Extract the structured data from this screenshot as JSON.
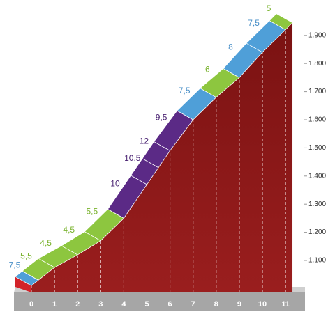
{
  "chart_data": {
    "type": "profile",
    "x": [
      0,
      0.3,
      1,
      2,
      3,
      4,
      5,
      5.5,
      6,
      7,
      8,
      9,
      10,
      11,
      11.3
    ],
    "elevation": [
      1010,
      1030,
      1075,
      1120,
      1170,
      1250,
      1370,
      1430,
      1490,
      1600,
      1680,
      1750,
      1840,
      1920,
      1945
    ],
    "gradients": [
      7.5,
      5.5,
      4.5,
      4.5,
      5.5,
      10,
      10.5,
      12,
      9.5,
      7.5,
      6,
      8,
      7.5,
      5
    ],
    "gradient_labels": [
      "7,5",
      "5,5",
      "4,5",
      "4,5",
      "5,5",
      "10",
      "10,5",
      "12",
      "9,5",
      "7,5",
      "6",
      "8",
      "7,5",
      "5"
    ],
    "colors": [
      "#4f9fd8",
      "#8dc63f",
      "#8dc63f",
      "#8dc63f",
      "#8dc63f",
      "#5b2a86",
      "#5b2a86",
      "#5b2a86",
      "#5b2a86",
      "#4f9fd8",
      "#8dc63f",
      "#4f9fd8",
      "#4f9fd8",
      "#8dc63f"
    ],
    "label_colors": [
      "#4a90c8",
      "#7ab32e",
      "#7ab32e",
      "#7ab32e",
      "#7ab32e",
      "#4b2473",
      "#4b2473",
      "#4b2473",
      "#4b2473",
      "#4a90c8",
      "#7ab32e",
      "#4a90c8",
      "#4a90c8",
      "#7ab32e"
    ],
    "xticks": [
      0,
      1,
      2,
      3,
      4,
      5,
      6,
      7,
      8,
      9,
      10,
      11
    ],
    "ylim": [
      1000,
      2000
    ],
    "yticks": [
      {
        "value": 1100,
        "label": "1.100"
      },
      {
        "value": 1200,
        "label": "1.200"
      },
      {
        "value": 1300,
        "label": "1.300"
      },
      {
        "value": 1400,
        "label": "1.400"
      },
      {
        "value": 1500,
        "label": "1.500"
      },
      {
        "value": 1600,
        "label": "1.600"
      },
      {
        "value": 1700,
        "label": "1.700"
      },
      {
        "value": 1800,
        "label": "1.800"
      },
      {
        "value": 1900,
        "label": "1.900"
      }
    ]
  }
}
